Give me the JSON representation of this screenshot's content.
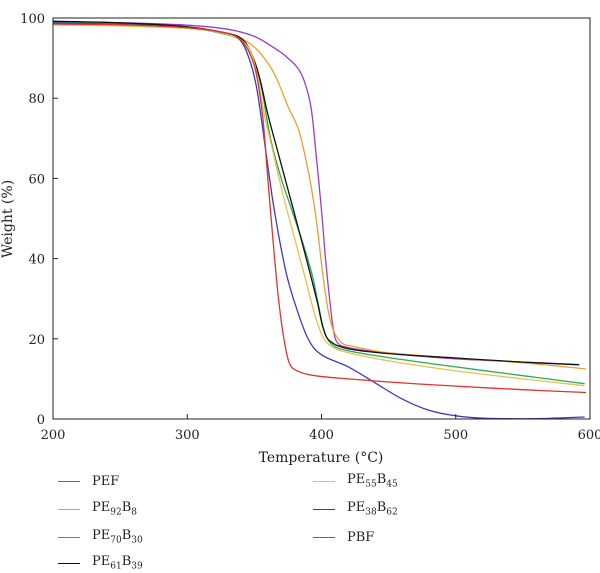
{
  "chart_data": {
    "type": "line",
    "xlabel": "Temperature (°C)",
    "ylabel": "Weight (%)",
    "xlim": [
      200,
      600
    ],
    "ylim": [
      0,
      100
    ],
    "xticks": [
      200,
      300,
      400,
      500,
      600
    ],
    "yticks": [
      0,
      20,
      40,
      60,
      80,
      100
    ],
    "grid": false,
    "legend_position": "bottom",
    "series": [
      {
        "name": "PEF",
        "base": "PE",
        "sub1": "",
        "sub2": "",
        "suffix": "F",
        "color": "#9b3ec6",
        "points": [
          [
            200,
            99
          ],
          [
            250,
            98.8
          ],
          [
            300,
            98.2
          ],
          [
            330,
            97.2
          ],
          [
            350,
            95.4
          ],
          [
            365,
            92.5
          ],
          [
            375,
            90
          ],
          [
            385,
            86
          ],
          [
            392,
            78
          ],
          [
            396,
            66
          ],
          [
            400,
            52
          ],
          [
            403,
            40
          ],
          [
            406,
            30
          ],
          [
            409,
            22
          ],
          [
            412,
            19
          ],
          [
            420,
            17.8
          ],
          [
            450,
            16.4
          ],
          [
            500,
            15
          ],
          [
            550,
            14.2
          ],
          [
            592,
            13.6
          ]
        ]
      },
      {
        "name": "PE92B8",
        "base": "PE",
        "sub1": "92",
        "sub2": "8",
        "suffix": "",
        "color": "#e8a031",
        "points": [
          [
            200,
            98.6
          ],
          [
            250,
            98.3
          ],
          [
            300,
            97.5
          ],
          [
            330,
            96.2
          ],
          [
            345,
            94
          ],
          [
            355,
            91
          ],
          [
            365,
            86
          ],
          [
            375,
            78
          ],
          [
            383,
            72
          ],
          [
            390,
            62
          ],
          [
            396,
            50
          ],
          [
            401,
            36
          ],
          [
            405,
            27
          ],
          [
            409,
            22
          ],
          [
            415,
            19
          ],
          [
            425,
            18
          ],
          [
            450,
            16.5
          ],
          [
            500,
            15.2
          ],
          [
            550,
            14
          ],
          [
            597,
            12.5
          ]
        ]
      },
      {
        "name": "PE70B30",
        "base": "PE",
        "sub1": "70",
        "sub2": "30",
        "suffix": "",
        "color": "#2daa5a",
        "points": [
          [
            200,
            99
          ],
          [
            250,
            98.6
          ],
          [
            300,
            97.5
          ],
          [
            325,
            96.2
          ],
          [
            340,
            94.5
          ],
          [
            348,
            91
          ],
          [
            355,
            83
          ],
          [
            362,
            70
          ],
          [
            370,
            60
          ],
          [
            378,
            52
          ],
          [
            386,
            44
          ],
          [
            393,
            36
          ],
          [
            398,
            28
          ],
          [
            402,
            22
          ],
          [
            408,
            18.5
          ],
          [
            420,
            17
          ],
          [
            450,
            15.3
          ],
          [
            500,
            13
          ],
          [
            550,
            10.8
          ],
          [
            596,
            8.8
          ]
        ]
      },
      {
        "name": "PE61B39",
        "base": "PE",
        "sub1": "61",
        "sub2": "39",
        "suffix": "",
        "color": "#111111",
        "points": [
          [
            200,
            99.2
          ],
          [
            250,
            98.8
          ],
          [
            300,
            97.8
          ],
          [
            325,
            96.5
          ],
          [
            340,
            95
          ],
          [
            348,
            91
          ],
          [
            354,
            85
          ],
          [
            360,
            76
          ],
          [
            368,
            66
          ],
          [
            376,
            56
          ],
          [
            384,
            46
          ],
          [
            391,
            37
          ],
          [
            397,
            29
          ],
          [
            401,
            23
          ],
          [
            406,
            19.5
          ],
          [
            420,
            17.5
          ],
          [
            450,
            16.3
          ],
          [
            500,
            15.2
          ],
          [
            550,
            14.2
          ],
          [
            592,
            13.5
          ]
        ]
      },
      {
        "name": "PE55B45",
        "base": "PE",
        "sub1": "55",
        "sub2": "45",
        "suffix": "",
        "color": "#e6c34a",
        "points": [
          [
            200,
            98.3
          ],
          [
            250,
            98
          ],
          [
            300,
            97.4
          ],
          [
            325,
            96.3
          ],
          [
            340,
            94.5
          ],
          [
            348,
            91
          ],
          [
            353,
            84
          ],
          [
            358,
            75
          ],
          [
            365,
            65
          ],
          [
            372,
            55
          ],
          [
            380,
            45
          ],
          [
            388,
            35
          ],
          [
            395,
            26
          ],
          [
            401,
            20.5
          ],
          [
            408,
            18
          ],
          [
            420,
            16.5
          ],
          [
            450,
            14.5
          ],
          [
            500,
            12
          ],
          [
            550,
            10
          ],
          [
            596,
            8.3
          ]
        ]
      },
      {
        "name": "PE38B62",
        "base": "PE",
        "sub1": "38",
        "sub2": "62",
        "suffix": "",
        "color": "#3a3cc0",
        "points": [
          [
            200,
            98.8
          ],
          [
            250,
            98.4
          ],
          [
            300,
            97.6
          ],
          [
            325,
            96.5
          ],
          [
            338,
            95
          ],
          [
            346,
            90
          ],
          [
            352,
            82
          ],
          [
            358,
            68
          ],
          [
            363,
            56
          ],
          [
            368,
            46
          ],
          [
            374,
            36
          ],
          [
            381,
            28
          ],
          [
            390,
            20
          ],
          [
            400,
            16
          ],
          [
            420,
            13
          ],
          [
            440,
            9
          ],
          [
            460,
            5
          ],
          [
            480,
            2.2
          ],
          [
            500,
            0.8
          ],
          [
            520,
            0.2
          ],
          [
            560,
            0.1
          ],
          [
            596,
            0.5
          ]
        ]
      },
      {
        "name": "PBF",
        "base": "PBF",
        "sub1": "",
        "sub2": "",
        "suffix": "",
        "color": "#e2312f",
        "points": [
          [
            200,
            98.5
          ],
          [
            250,
            98.3
          ],
          [
            300,
            97.6
          ],
          [
            325,
            96.5
          ],
          [
            340,
            94.5
          ],
          [
            350,
            88
          ],
          [
            356,
            76
          ],
          [
            360,
            60
          ],
          [
            364,
            44
          ],
          [
            368,
            30
          ],
          [
            372,
            20
          ],
          [
            376,
            14
          ],
          [
            382,
            12
          ],
          [
            395,
            10.8
          ],
          [
            420,
            10
          ],
          [
            460,
            9
          ],
          [
            500,
            8.2
          ],
          [
            550,
            7.3
          ],
          [
            597,
            6.6
          ]
        ]
      }
    ]
  }
}
